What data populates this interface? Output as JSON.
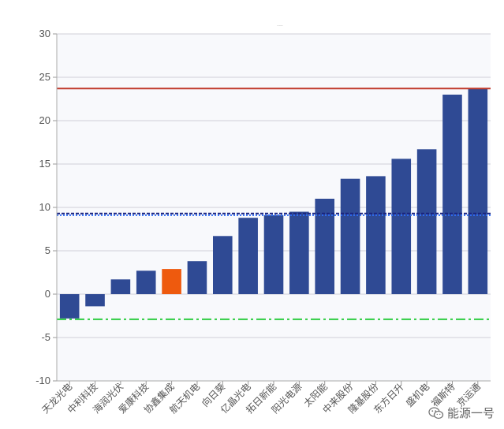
{
  "chart_data": {
    "type": "bar",
    "top_marker": "....",
    "categories": [
      "天龙光电",
      "中利科技",
      "海润光伏",
      "爱康科技",
      "协鑫集成",
      "航天机电",
      "向日葵",
      "亿晶光电",
      "拓日新能",
      "阳光电源",
      "太阳能",
      "中来股份",
      "隆基股份",
      "东方日升",
      "盛机电",
      "福斯特",
      "京运通"
    ],
    "values": [
      -2.8,
      -1.4,
      1.7,
      2.7,
      2.9,
      3.8,
      6.7,
      8.8,
      9.1,
      9.5,
      11.0,
      13.3,
      13.6,
      15.6,
      16.7,
      23.0,
      23.7
    ],
    "highlight_category": "协鑫集成",
    "ylim": [
      -10,
      30
    ],
    "yticks": [
      -10,
      -5,
      0,
      5,
      10,
      15,
      20,
      25,
      30
    ],
    "reference_lines": [
      {
        "value": 23.7,
        "color": "#c0392b",
        "style": "solid"
      },
      {
        "value": 9.3,
        "color": "#1a237e",
        "style": "dashed"
      },
      {
        "value": 9.1,
        "color": "#2f6df5",
        "style": "dotted"
      },
      {
        "value": -2.9,
        "color": "#2ecc40",
        "style": "dashdot"
      }
    ],
    "colors": {
      "bar": "#2f4a94",
      "highlight": "#ee5a0e",
      "grid": "#d0d0d8",
      "plot_bg": "#f8f9fc"
    },
    "grid": true,
    "legend": "none"
  },
  "watermark": {
    "text": "能源一号",
    "icon": "wechat-icon"
  }
}
